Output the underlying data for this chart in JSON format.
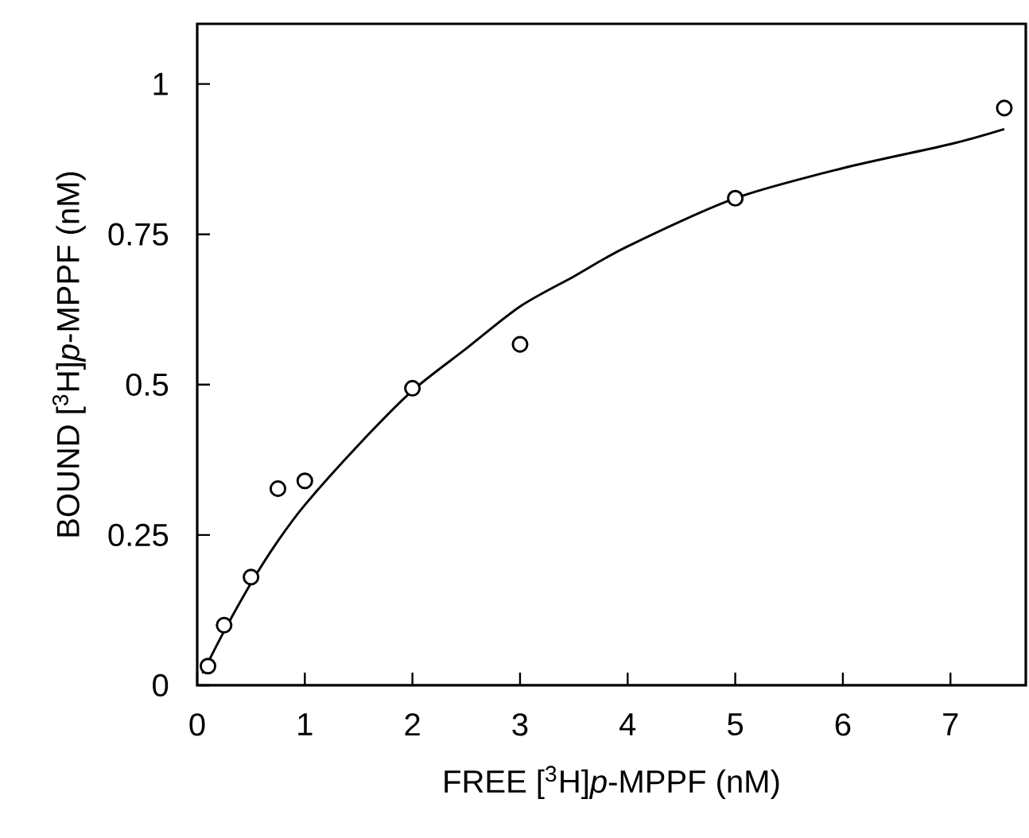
{
  "chart_data": {
    "type": "scatter",
    "xlabel": "FREE [$^{3}$H]*p*-MPPF (nM)",
    "ylabel": "BOUND [$^{3}$H]*p*-MPPF (nM)",
    "xlim": [
      0,
      7.7
    ],
    "ylim": [
      0,
      1.1
    ],
    "xticks": [
      0,
      1,
      2,
      3,
      4,
      5,
      6,
      7
    ],
    "yticks": [
      0,
      0.25,
      0.5,
      0.75,
      1
    ],
    "marker": "circle",
    "series": [
      {
        "color": "#000000",
        "x": [
          0.1,
          0.25,
          0.5,
          0.75,
          1,
          2,
          3,
          5,
          7.5
        ],
        "values": [
          0.032,
          0.1,
          0.18,
          0.327,
          0.34,
          0.494,
          0.567,
          0.81,
          0.96
        ]
      },
      {
        "type": "line",
        "color": "#000000",
        "marker": "none",
        "line_style": "solid",
        "x": [
          0.05,
          0.25,
          0.5,
          0.75,
          1,
          1.5,
          2,
          2.5,
          3,
          3.5,
          4,
          5,
          6,
          7,
          7.5
        ],
        "values": [
          0.02,
          0.09,
          0.17,
          0.24,
          0.3,
          0.4,
          0.49,
          0.56,
          0.63,
          0.68,
          0.73,
          0.81,
          0.86,
          0.9,
          0.925
        ]
      }
    ]
  }
}
